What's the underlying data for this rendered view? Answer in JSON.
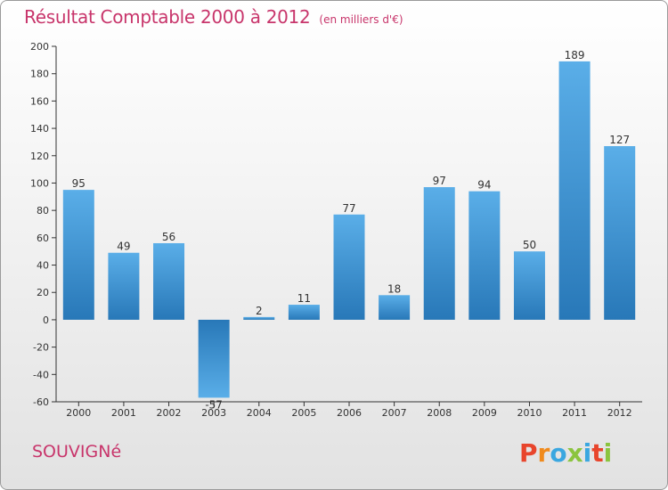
{
  "chart_data": {
    "type": "bar",
    "title": "Résultat Comptable 2000 à 2012",
    "unit_label": "(en milliers d'€)",
    "categories": [
      "2000",
      "2001",
      "2002",
      "2003",
      "2004",
      "2005",
      "2006",
      "2007",
      "2008",
      "2009",
      "2010",
      "2011",
      "2012"
    ],
    "values": [
      95,
      49,
      56,
      -57,
      2,
      11,
      77,
      18,
      97,
      94,
      50,
      189,
      127
    ],
    "data_labels": [
      "95",
      "49",
      "56",
      "-57",
      "2",
      "11",
      "77",
      "18",
      "97",
      "94",
      "50",
      "189",
      "127"
    ],
    "ylim": [
      -60,
      200
    ],
    "yticks": [
      -60,
      -40,
      -20,
      0,
      20,
      40,
      60,
      80,
      100,
      120,
      140,
      160,
      180,
      200
    ],
    "xlabel": "",
    "ylabel": "",
    "grid": false,
    "legend": "none"
  },
  "footer": {
    "commune": "SOUVIGNé",
    "logo_text": "Proxiti"
  },
  "colors": {
    "title": "#c8356b",
    "bar_light": "#5aaee8",
    "bar_dark": "#2878b8",
    "axis": "#333333",
    "logo_letters": [
      "#e8452c",
      "#f08a1c",
      "#3aa7e0",
      "#8bc43f",
      "#3aa7e0",
      "#e8452c",
      "#8bc43f"
    ]
  }
}
